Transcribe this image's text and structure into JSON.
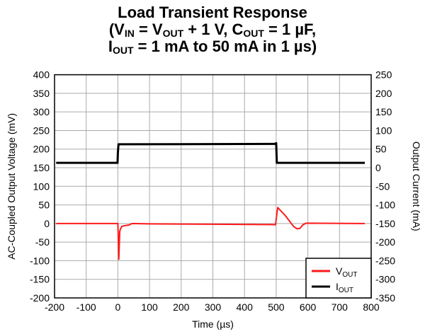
{
  "chart_data": {
    "type": "line",
    "title": "Load Transient Response",
    "subtitle_line1": {
      "parts": [
        "(V",
        "IN",
        " = V",
        "OUT",
        " + 1 V, C",
        "OUT",
        " = 1 µF,"
      ]
    },
    "subtitle_line2": {
      "parts": [
        "I",
        "OUT",
        " = 1 mA to 50 mA in 1 µs)"
      ]
    },
    "xlabel": "Time (µs)",
    "ylabel": "AC-Coupled Output Voltage (mV)",
    "y2label": "Output Current (mA)",
    "xlim": [
      -200,
      800
    ],
    "ylim": [
      -200,
      400
    ],
    "y2lim": [
      -350,
      250
    ],
    "xticks": [
      -200,
      -100,
      0,
      100,
      200,
      300,
      400,
      500,
      600,
      700,
      800
    ],
    "yticks": [
      400,
      350,
      300,
      250,
      200,
      150,
      100,
      50,
      0,
      -50,
      -100,
      -150,
      -200
    ],
    "y2ticks": [
      250,
      200,
      150,
      100,
      50,
      0,
      -50,
      -100,
      -150,
      -200,
      -250,
      -300,
      -350
    ],
    "grid": true,
    "legend_position": "bottom-right",
    "series": [
      {
        "name": "V",
        "name_sub": "OUT",
        "axis": "left",
        "color": "#ff1a1a",
        "x": [
          -195,
          0,
          1,
          3,
          6,
          12,
          20,
          35,
          45,
          100,
          300,
          495,
          498,
          502,
          505,
          530,
          555,
          565,
          575,
          585,
          595,
          780
        ],
        "y": [
          0,
          0,
          -30,
          -96,
          -20,
          -8,
          -6,
          -4,
          0,
          -1,
          -2,
          -3,
          -3,
          25,
          43,
          20,
          -8,
          -14,
          -13,
          -3,
          1,
          0
        ]
      },
      {
        "name": "I",
        "name_sub": "OUT",
        "axis": "right",
        "color": "#000000",
        "x": [
          -195,
          -1,
          0,
          2,
          495,
          500,
          502,
          780
        ],
        "y": [
          13,
          13,
          40,
          63,
          64,
          66,
          13,
          13
        ]
      }
    ]
  }
}
